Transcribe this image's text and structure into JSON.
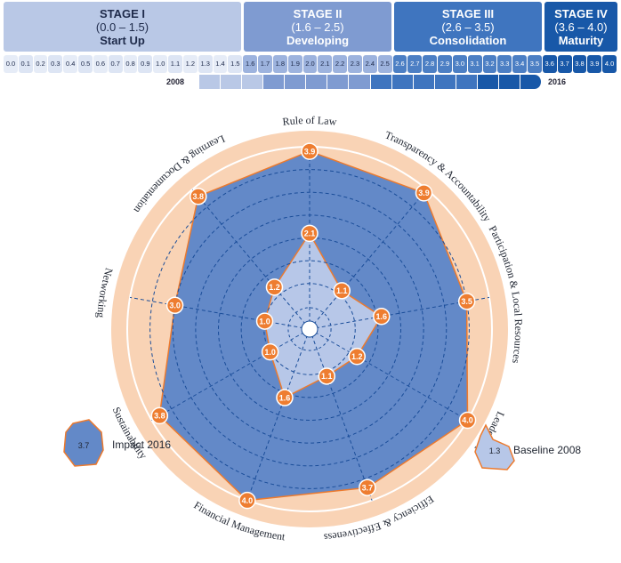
{
  "stages": [
    {
      "name": "STAGE I",
      "range": "(0.0 – 1.5)",
      "label": "Start Up",
      "color": "#b9c8e6",
      "text_color": "#1e2a4a"
    },
    {
      "name": "STAGE II",
      "range": "(1.6 – 2.5)",
      "label": "Developing",
      "color": "#7f9bd1",
      "text_color": "#ffffff"
    },
    {
      "name": "STAGE III",
      "range": "(2.6 – 3.5)",
      "label": "Consolidation",
      "color": "#3f75bf",
      "text_color": "#ffffff"
    },
    {
      "name": "STAGE IV",
      "range": "(3.6 – 4.0)",
      "label": "Maturity",
      "color": "#1858a8",
      "text_color": "#ffffff"
    }
  ],
  "scale_ticks": [
    "0.0",
    "0.1",
    "0.2",
    "0.3",
    "0.4",
    "0.5",
    "0.6",
    "0.7",
    "0.8",
    "0.9",
    "1.0",
    "1.1",
    "1.2",
    "1.3",
    "1.4",
    "1.5",
    "1.6",
    "1.7",
    "1.8",
    "1.9",
    "2.0",
    "2.1",
    "2.2",
    "2.3",
    "2.4",
    "2.5",
    "2.6",
    "2.7",
    "2.8",
    "2.9",
    "3.0",
    "3.1",
    "3.2",
    "3.3",
    "3.4",
    "3.5",
    "3.6",
    "3.7",
    "3.8",
    "3.9",
    "4.0"
  ],
  "timeline": {
    "start_label": "2008",
    "end_label": "2016"
  },
  "chart_data": {
    "type": "radar",
    "r_range": [
      0,
      4
    ],
    "axes": [
      "Rule of Law",
      "Transparency & Accountability",
      "Participation & Local Resources",
      "Leadership",
      "Efficiency & Effectiveness",
      "Financial Management",
      "Sustainability",
      "Networking",
      "Learning & Documentation"
    ],
    "series": [
      {
        "name": "Impact 2016",
        "values": [
          3.9,
          3.9,
          3.5,
          4.0,
          3.7,
          4.0,
          3.8,
          3.0,
          3.8
        ],
        "color": "#6389c8",
        "value_labels": [
          "3.9",
          "3.9",
          "3.5",
          "4.0",
          "3.7",
          "4.0",
          "3.8",
          "3.0",
          "3.8"
        ]
      },
      {
        "name": "Baseline 2008",
        "values": [
          2.1,
          1.1,
          1.6,
          1.2,
          1.1,
          1.6,
          1.0,
          1.0,
          1.2
        ],
        "color": "#b7c7e8",
        "value_labels": [
          "2.1",
          "1.1",
          "1.6",
          "1.2",
          "1.1",
          "1.6",
          "1.0",
          "1.0",
          "1.2"
        ]
      }
    ],
    "legend": [
      {
        "name": "Impact 2016",
        "value": "3.7"
      },
      {
        "name": "Baseline 2008",
        "value": "1.3"
      }
    ],
    "legend_placement": "bottom",
    "outline_color": "#ec7a2e",
    "ring_color": "#f9d3b5"
  }
}
